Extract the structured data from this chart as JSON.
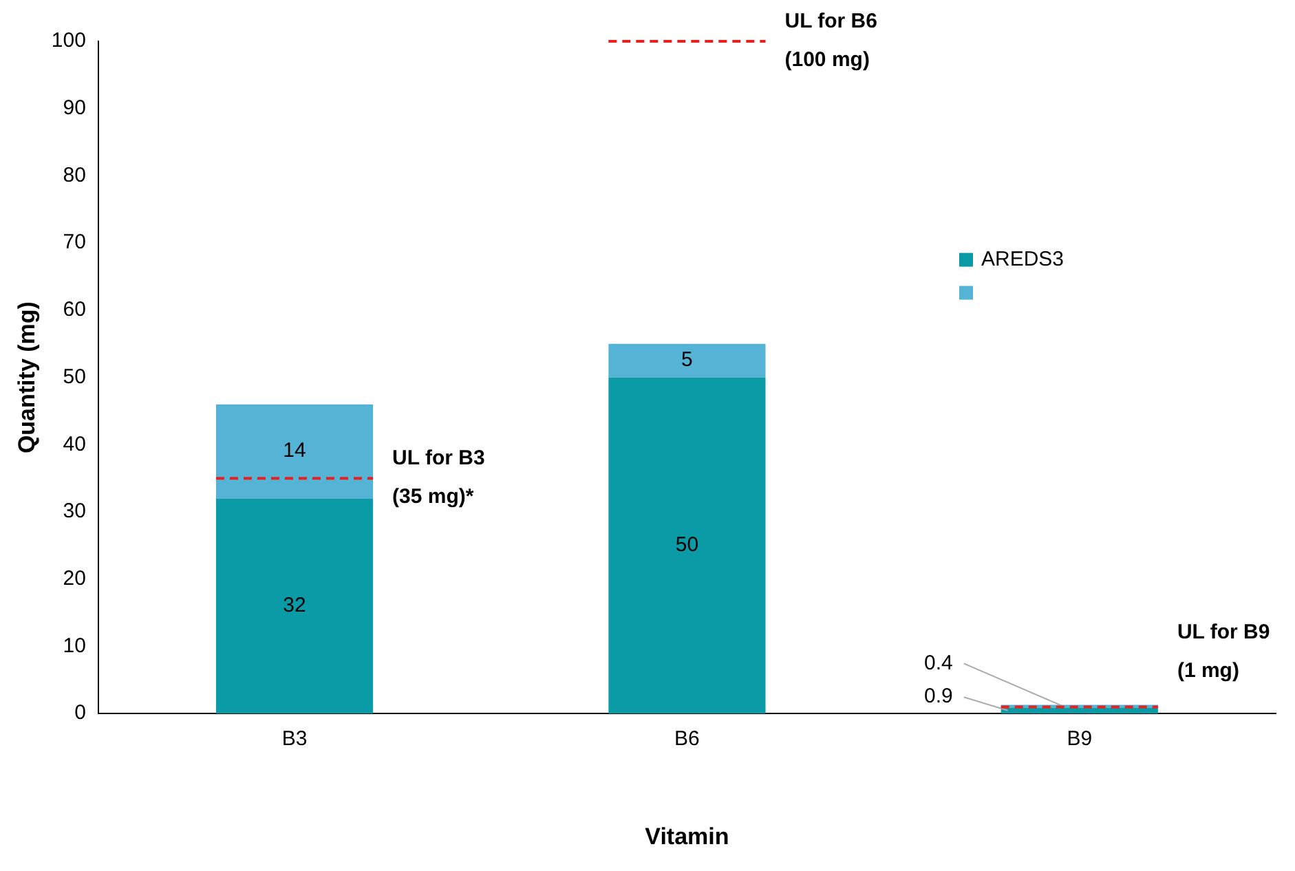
{
  "chart_data": {
    "type": "bar",
    "stacked": true,
    "xlabel": "Vitamin",
    "ylabel": "Quantity (mg)",
    "categories": [
      "B3",
      "B6",
      "B9"
    ],
    "series": [
      {
        "name": "AREDS3",
        "color": "#0a9ba6",
        "values": [
          32,
          50,
          0.9
        ]
      },
      {
        "color": "#55b4d6",
        "values": [
          14,
          5,
          0.4
        ]
      }
    ],
    "ylim": [
      0,
      100
    ],
    "yticks": [
      0,
      10,
      20,
      30,
      40,
      50,
      60,
      70,
      80,
      90,
      100
    ],
    "grid": false,
    "legend": "right",
    "data_labels": true,
    "ref_lines": [
      {
        "axis": "y",
        "value": 35,
        "label": "UL for B3\n(35 mg)*",
        "color": "#e8201f",
        "line_style": "dashed"
      },
      {
        "axis": "y",
        "value": 100,
        "label": "UL for B6\n(100 mg)",
        "color": "#e8201f",
        "line_style": "dashed"
      },
      {
        "axis": "y",
        "value": 1,
        "label": "UL for B9\n(1 mg)",
        "color": "#e8201f",
        "line_style": "dashed"
      }
    ]
  }
}
